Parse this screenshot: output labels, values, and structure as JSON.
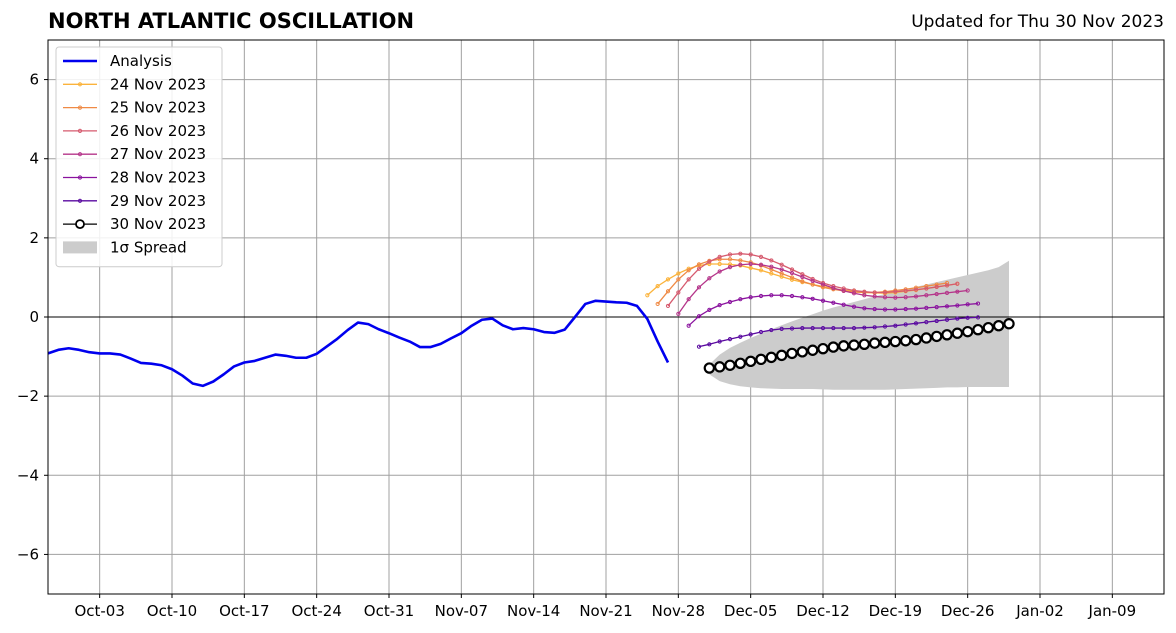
{
  "chart_data": {
    "type": "line",
    "title": "NORTH ATLANTIC OSCILLATION",
    "subtitle": "Updated for Thu 30 Nov 2023",
    "xlabel": "",
    "ylabel": "",
    "ylim": [
      -7,
      7
    ],
    "xlim": [
      "2023-09-28",
      "2024-01-14"
    ],
    "grid": true,
    "legend_position": "top-left",
    "x_tick_labels": [
      "Oct-03",
      "Oct-10",
      "Oct-17",
      "Oct-24",
      "Oct-31",
      "Nov-07",
      "Nov-14",
      "Nov-21",
      "Nov-28",
      "Dec-05",
      "Dec-12",
      "Dec-19",
      "Dec-26",
      "Jan-02",
      "Jan-09"
    ],
    "x_ticks": [
      "2023-10-03",
      "2023-10-10",
      "2023-10-17",
      "2023-10-24",
      "2023-10-31",
      "2023-11-07",
      "2023-11-14",
      "2023-11-21",
      "2023-11-28",
      "2023-12-05",
      "2023-12-12",
      "2023-12-19",
      "2023-12-26",
      "2024-01-02",
      "2024-01-09"
    ],
    "y_tick_labels": [
      "−6",
      "−4",
      "−2",
      "0",
      "2",
      "4",
      "6"
    ],
    "y_ticks": [
      -6,
      -4,
      -2,
      0,
      2,
      4,
      6
    ],
    "series": [
      {
        "name": "Analysis",
        "color": "#0000ee",
        "style": "thick-line",
        "start": "2023-09-28",
        "values": [
          -0.92,
          -0.83,
          -0.79,
          -0.83,
          -0.89,
          -0.92,
          -0.92,
          -0.95,
          -1.05,
          -1.16,
          -1.18,
          -1.22,
          -1.32,
          -1.48,
          -1.68,
          -1.74,
          -1.63,
          -1.45,
          -1.25,
          -1.15,
          -1.11,
          -1.03,
          -0.95,
          -0.98,
          -1.03,
          -1.03,
          -0.93,
          -0.74,
          -0.55,
          -0.33,
          -0.14,
          -0.18,
          -0.31,
          -0.41,
          -0.52,
          -0.62,
          -0.76,
          -0.76,
          -0.68,
          -0.54,
          -0.41,
          -0.22,
          -0.07,
          -0.04,
          -0.21,
          -0.31,
          -0.28,
          -0.31,
          -0.38,
          -0.4,
          -0.32,
          0.0,
          0.33,
          0.41,
          0.39,
          0.37,
          0.36,
          0.28,
          -0.05,
          -0.62,
          -1.15
        ]
      },
      {
        "name": "24 Nov 2023",
        "color": "#fbb33b",
        "start": "2023-11-25",
        "values": [
          0.55,
          0.78,
          0.95,
          1.1,
          1.22,
          1.3,
          1.34,
          1.34,
          1.33,
          1.3,
          1.24,
          1.18,
          1.1,
          1.02,
          0.94,
          0.88,
          0.82,
          0.77,
          0.72,
          0.68,
          0.65,
          0.62,
          0.61,
          0.6,
          0.62,
          0.65,
          0.68,
          0.72,
          0.76,
          0.8,
          0.84
        ]
      },
      {
        "name": "25 Nov 2023",
        "color": "#ef8a45",
        "start": "2023-11-26",
        "values": [
          0.33,
          0.65,
          0.95,
          1.18,
          1.33,
          1.42,
          1.46,
          1.46,
          1.43,
          1.38,
          1.3,
          1.2,
          1.1,
          1.0,
          0.9,
          0.82,
          0.75,
          0.7,
          0.66,
          0.63,
          0.62,
          0.62,
          0.64,
          0.67,
          0.7,
          0.74,
          0.78,
          0.82,
          0.86
        ]
      },
      {
        "name": "26 Nov 2023",
        "color": "#d65a6e",
        "start": "2023-11-27",
        "values": [
          0.28,
          0.62,
          0.95,
          1.22,
          1.4,
          1.52,
          1.58,
          1.6,
          1.58,
          1.52,
          1.43,
          1.32,
          1.2,
          1.08,
          0.96,
          0.86,
          0.78,
          0.72,
          0.67,
          0.64,
          0.62,
          0.62,
          0.64,
          0.66,
          0.69,
          0.72,
          0.76,
          0.8,
          0.84
        ]
      },
      {
        "name": "27 Nov 2023",
        "color": "#b5358a",
        "start": "2023-11-28",
        "values": [
          0.08,
          0.45,
          0.75,
          0.98,
          1.15,
          1.26,
          1.32,
          1.34,
          1.32,
          1.27,
          1.2,
          1.11,
          1.01,
          0.91,
          0.82,
          0.73,
          0.66,
          0.6,
          0.55,
          0.52,
          0.5,
          0.49,
          0.5,
          0.52,
          0.55,
          0.58,
          0.61,
          0.64,
          0.67
        ]
      },
      {
        "name": "28 Nov 2023",
        "color": "#8a129e",
        "start": "2023-11-29",
        "values": [
          -0.22,
          0.02,
          0.18,
          0.3,
          0.38,
          0.45,
          0.5,
          0.53,
          0.55,
          0.55,
          0.53,
          0.5,
          0.46,
          0.41,
          0.36,
          0.31,
          0.26,
          0.22,
          0.2,
          0.19,
          0.19,
          0.2,
          0.21,
          0.23,
          0.25,
          0.27,
          0.29,
          0.32,
          0.34
        ]
      },
      {
        "name": "29 Nov 2023",
        "color": "#5a0aa0",
        "start": "2023-11-30",
        "values": [
          -0.75,
          -0.69,
          -0.62,
          -0.56,
          -0.5,
          -0.44,
          -0.38,
          -0.33,
          -0.3,
          -0.29,
          -0.28,
          -0.28,
          -0.28,
          -0.28,
          -0.28,
          -0.28,
          -0.27,
          -0.26,
          -0.24,
          -0.22,
          -0.19,
          -0.16,
          -0.13,
          -0.1,
          -0.07,
          -0.04,
          -0.02,
          -0.01
        ]
      },
      {
        "name": "30 Nov 2023",
        "color": "#000000",
        "style": "open-circles",
        "start": "2023-12-01",
        "values": [
          -1.29,
          -1.26,
          -1.22,
          -1.17,
          -1.12,
          -1.07,
          -1.02,
          -0.97,
          -0.92,
          -0.88,
          -0.84,
          -0.8,
          -0.76,
          -0.73,
          -0.71,
          -0.69,
          -0.66,
          -0.64,
          -0.62,
          -0.6,
          -0.57,
          -0.53,
          -0.49,
          -0.45,
          -0.41,
          -0.37,
          -0.32,
          -0.27,
          -0.22,
          -0.17
        ]
      }
    ],
    "spread": {
      "name": "1σ Spread",
      "color": "#cccccc",
      "start": "2023-12-01",
      "upper": [
        -1.2,
        -0.95,
        -0.78,
        -0.65,
        -0.53,
        -0.42,
        -0.31,
        -0.21,
        -0.11,
        -0.02,
        0.07,
        0.16,
        0.24,
        0.31,
        0.38,
        0.45,
        0.52,
        0.58,
        0.64,
        0.7,
        0.76,
        0.82,
        0.88,
        0.94,
        1.0,
        1.06,
        1.12,
        1.18,
        1.26,
        1.42
      ],
      "lower": [
        -1.45,
        -1.62,
        -1.7,
        -1.75,
        -1.78,
        -1.8,
        -1.81,
        -1.82,
        -1.82,
        -1.82,
        -1.82,
        -1.83,
        -1.84,
        -1.84,
        -1.84,
        -1.84,
        -1.84,
        -1.84,
        -1.83,
        -1.82,
        -1.81,
        -1.8,
        -1.79,
        -1.78,
        -1.78,
        -1.77,
        -1.77,
        -1.77,
        -1.77,
        -1.77
      ]
    }
  }
}
